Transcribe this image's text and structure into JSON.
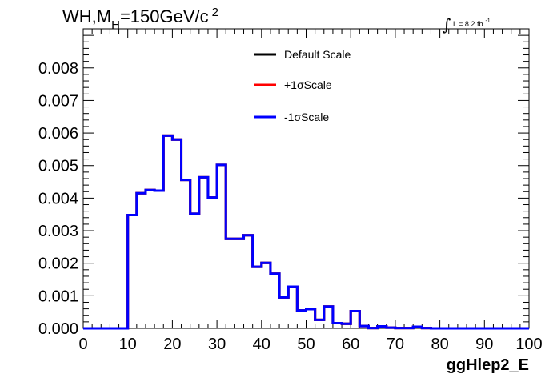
{
  "chart_data": {
    "type": "line",
    "title_main": "WH,M",
    "title_sub": "H",
    "title_rest": "=150GeV/c",
    "title_sup": "2",
    "lumi_integral": "∫",
    "lumi_text": "L = 8.2 fb",
    "lumi_sup": "-1",
    "xlabel": "ggHlep2_E",
    "ylabel": "",
    "xlim": [
      0,
      100
    ],
    "ylim": [
      0,
      0.0092
    ],
    "xticks": [
      0,
      10,
      20,
      30,
      40,
      50,
      60,
      70,
      80,
      90,
      100
    ],
    "xtick_labels": [
      "0",
      "10",
      "20",
      "30",
      "40",
      "50",
      "60",
      "70",
      "80",
      "90",
      "100"
    ],
    "yticks": [
      0,
      0.001,
      0.002,
      0.003,
      0.004,
      0.005,
      0.006,
      0.007,
      0.008
    ],
    "ytick_labels": [
      "0.000",
      "0.001",
      "0.002",
      "0.003",
      "0.004",
      "0.005",
      "0.006",
      "0.007",
      "0.008"
    ],
    "legend_position": "top-center",
    "bin_edges": [
      0,
      2,
      4,
      6,
      8,
      10,
      12,
      14,
      16,
      18,
      20,
      22,
      24,
      26,
      28,
      30,
      32,
      34,
      36,
      38,
      40,
      42,
      44,
      46,
      48,
      50,
      52,
      54,
      56,
      58,
      60,
      62,
      64,
      66,
      68,
      70,
      72,
      74,
      76,
      78,
      80,
      82,
      84,
      86,
      88,
      90,
      92,
      94,
      96,
      98,
      100
    ],
    "series": [
      {
        "name": "Default Scale",
        "color": "#000000",
        "values": [
          0,
          0,
          0,
          0,
          0,
          0.00348,
          0.00415,
          0.00425,
          0.00423,
          0.00592,
          0.0058,
          0.00456,
          0.00352,
          0.00464,
          0.00402,
          0.00502,
          0.00275,
          0.00275,
          0.00286,
          0.00189,
          0.00201,
          0.00168,
          0.00095,
          0.00128,
          0.00055,
          0.00059,
          0.00026,
          0.00067,
          0.00016,
          0.00014,
          0.00053,
          7e-05,
          1e-05,
          6e-05,
          2e-05,
          1e-05,
          1e-05,
          5e-05,
          1e-05,
          0,
          0,
          0,
          0,
          0,
          0,
          0,
          0,
          0,
          0,
          0
        ]
      },
      {
        "name": "+1σScale",
        "color": "#ff0000",
        "values": [
          0,
          0,
          0,
          0,
          0,
          0.00348,
          0.00415,
          0.00425,
          0.00423,
          0.00592,
          0.0058,
          0.00456,
          0.00352,
          0.00464,
          0.00402,
          0.00502,
          0.00275,
          0.00275,
          0.00286,
          0.00189,
          0.00201,
          0.00168,
          0.00095,
          0.00128,
          0.00055,
          0.00059,
          0.00026,
          0.00067,
          0.00016,
          0.00014,
          0.00053,
          7e-05,
          1e-05,
          6e-05,
          2e-05,
          1e-05,
          1e-05,
          5e-05,
          1e-05,
          0,
          0,
          0,
          0,
          0,
          0,
          0,
          0,
          0,
          0,
          0
        ]
      },
      {
        "name": "-1σScale",
        "color": "#0000ff",
        "values": [
          0,
          0,
          0,
          0,
          0,
          0.00348,
          0.00415,
          0.00425,
          0.00423,
          0.00592,
          0.0058,
          0.00456,
          0.00352,
          0.00464,
          0.00402,
          0.00502,
          0.00275,
          0.00275,
          0.00286,
          0.00189,
          0.00201,
          0.00168,
          0.00095,
          0.00128,
          0.00055,
          0.00059,
          0.00026,
          0.00067,
          0.00016,
          0.00014,
          0.00053,
          7e-05,
          1e-05,
          6e-05,
          2e-05,
          1e-05,
          1e-05,
          5e-05,
          1e-05,
          0,
          0,
          0,
          0,
          0,
          0,
          0,
          0,
          0,
          0,
          0
        ]
      }
    ],
    "grid": false
  }
}
